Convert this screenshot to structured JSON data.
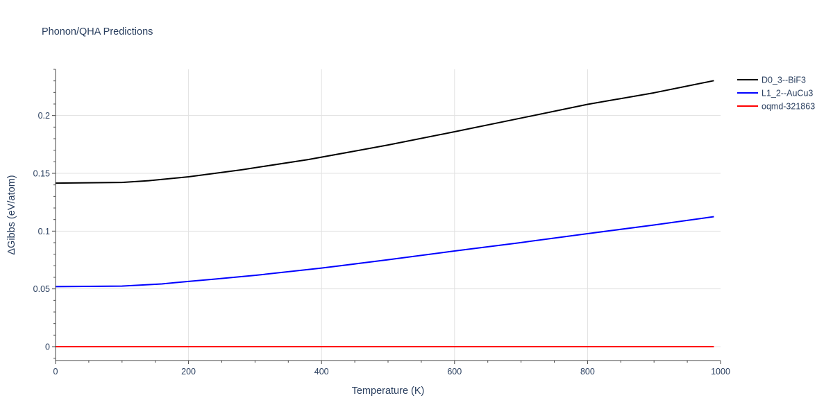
{
  "chart_data": {
    "type": "line",
    "title": "Phonon/QHA Predictions",
    "xlabel": "Temperature (K)",
    "ylabel": "ΔGibbs (eV/atom)",
    "xlim": [
      0,
      1000
    ],
    "ylim": [
      -0.012,
      0.24
    ],
    "x_ticks": [
      0,
      200,
      400,
      600,
      800,
      1000
    ],
    "x_tick_labels": [
      "0",
      "200",
      "400",
      "600",
      "800",
      "1000"
    ],
    "y_ticks": [
      0,
      0.05,
      0.1,
      0.15,
      0.2
    ],
    "y_tick_labels": [
      "0",
      "0.05",
      "0.1",
      "0.15",
      "0.2"
    ],
    "grid": true,
    "legend_position": "top-right",
    "series": [
      {
        "name": "D0_3--BiF3",
        "color": "#000000",
        "x": [
          0,
          50,
          100,
          140,
          200,
          280,
          380,
          500,
          600,
          700,
          800,
          900,
          990
        ],
        "y": [
          0.1415,
          0.1418,
          0.1421,
          0.1436,
          0.147,
          0.1531,
          0.1619,
          0.1745,
          0.186,
          0.1978,
          0.2097,
          0.2197,
          0.2302
        ]
      },
      {
        "name": "L1_2--AuCu3",
        "color": "#0000ff",
        "x": [
          0,
          50,
          100,
          160,
          200,
          240,
          300,
          400,
          500,
          600,
          700,
          800,
          900,
          990
        ],
        "y": [
          0.052,
          0.0522,
          0.0524,
          0.0543,
          0.0565,
          0.0585,
          0.0617,
          0.068,
          0.0752,
          0.0828,
          0.0901,
          0.0978,
          0.1053,
          0.1125
        ]
      },
      {
        "name": "oqmd-321863",
        "color": "#ff0000",
        "x": [
          0,
          990
        ],
        "y": [
          0,
          0
        ]
      }
    ]
  }
}
